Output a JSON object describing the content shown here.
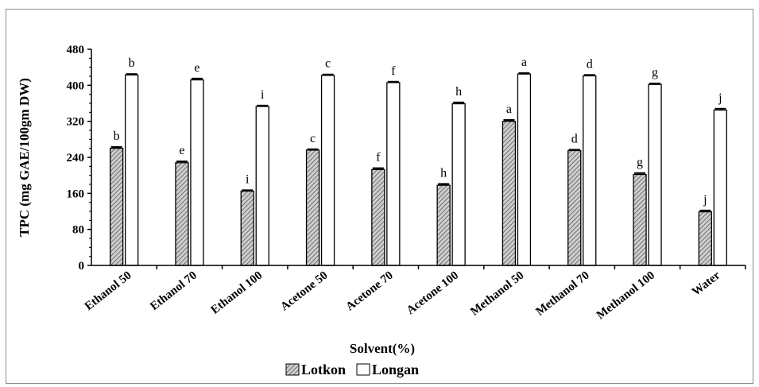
{
  "chart_data": {
    "type": "bar",
    "title": "",
    "xlabel": "Solvent(%)",
    "ylabel": "TPC (mg GAE/100gm DW)",
    "ylim": [
      0,
      480
    ],
    "yticks": [
      0,
      80,
      160,
      240,
      320,
      400,
      480
    ],
    "grid": false,
    "legend_position": "bottom",
    "categories": [
      "Ethanol 50",
      "Ethanol 70",
      "Ethanol 100",
      "Acetone 50",
      "Acetone 70",
      "Acetone 100",
      "Methanol 50",
      "Methanol 70",
      "Methanol 100",
      "Water"
    ],
    "series": [
      {
        "name": "Lotkon",
        "fill": "hatched",
        "values": [
          260,
          228,
          165,
          256,
          213,
          178,
          320,
          255,
          202,
          119
        ],
        "errors": [
          3,
          3,
          2,
          2,
          3,
          3,
          3,
          2,
          3,
          3
        ],
        "letters": [
          "b",
          "e",
          "i",
          "c",
          "f",
          "h",
          "a",
          "d",
          "g",
          "j"
        ]
      },
      {
        "name": "Longan",
        "fill": "white",
        "values": [
          423,
          412,
          353,
          422,
          406,
          359,
          425,
          421,
          402,
          345
        ],
        "errors": [
          2,
          3,
          2,
          2,
          2,
          3,
          2,
          2,
          2,
          3
        ],
        "letters": [
          "b",
          "e",
          "i",
          "c",
          "f",
          "h",
          "a",
          "d",
          "g",
          "j"
        ]
      }
    ]
  }
}
